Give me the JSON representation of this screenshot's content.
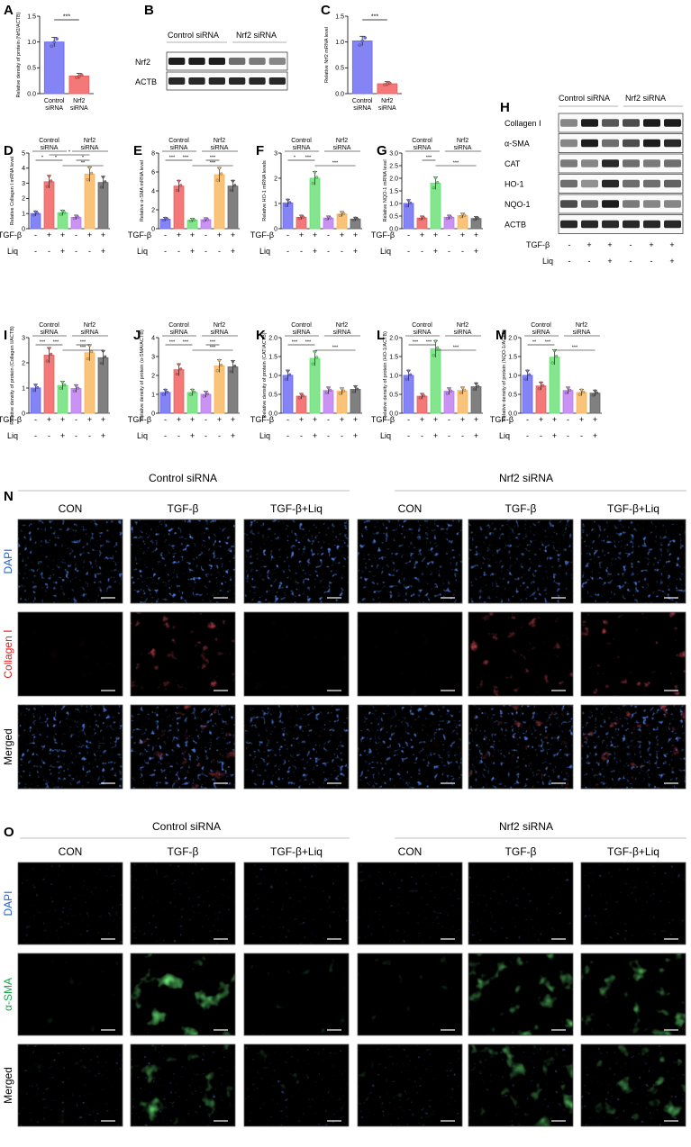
{
  "colors": {
    "control": "#6f6ff2",
    "tgf": "#f26060",
    "liq": "#6ee07a",
    "nrf2": "#c07ff2",
    "nrf2_tgf": "#f8b865",
    "nrf2_tgf_liq": "#6a6a6a"
  },
  "groups": {
    "control_sirna": "Control siRNA",
    "nrf2_sirna": "Nrf2 siRNA",
    "control_short": "Control",
    "sirna_short": "siRNA",
    "nrf2_short": "Nrf2"
  },
  "treat": {
    "tgf_label": "TGF-β",
    "liq_label": "Liq",
    "tgf_signs": [
      "-",
      "+",
      "+",
      "-",
      "+",
      "+"
    ],
    "liq_signs": [
      "-",
      "-",
      "+",
      "-",
      "-",
      "+"
    ]
  },
  "panelA": {
    "letter": "A",
    "ylabel": "Relative density of protein (Nrf2/ACTB)",
    "ylim": [
      0,
      1.5
    ],
    "yticks": [
      "0.0",
      "0.5",
      "1.0",
      "1.5"
    ],
    "categories": [
      "Control siRNA",
      "Nrf2 siRNA"
    ],
    "values": [
      1.0,
      0.34
    ],
    "sig": [
      "***"
    ]
  },
  "panelB": {
    "letter": "B",
    "rows": [
      "Nrf2",
      "ACTB"
    ]
  },
  "panelC": {
    "letter": "C",
    "ylabel": "Relative Nrf2 mRNA level",
    "ylim": [
      0,
      1.5
    ],
    "yticks": [
      "0.0",
      "0.5",
      "1.0",
      "1.5"
    ],
    "categories": [
      "Control siRNA",
      "Nrf2 siRNA"
    ],
    "values": [
      1.02,
      0.19
    ],
    "sig": [
      "***"
    ]
  },
  "panelH": {
    "letter": "H",
    "rows": [
      "Collagen Ⅰ",
      "α-SMA",
      "CAT",
      "HO-1",
      "NQO-1",
      "ACTB"
    ]
  },
  "chart_data": [
    {
      "panel": "D",
      "type": "bar",
      "ylabel": "Relative Collagen Ⅰ mRNA level",
      "ylim": [
        0,
        5
      ],
      "yticks": [
        "0",
        "1",
        "2",
        "3",
        "4",
        "5"
      ],
      "values": [
        1.0,
        3.1,
        1.05,
        0.75,
        3.6,
        3.05
      ],
      "sig": [
        "*",
        "*",
        "*",
        "**",
        "*"
      ]
    },
    {
      "panel": "E",
      "type": "bar",
      "ylabel": "Relative α-SMA mRNA level",
      "ylim": [
        0,
        8
      ],
      "yticks": [
        "0",
        "2",
        "4",
        "6",
        "8"
      ],
      "values": [
        1.0,
        4.5,
        0.9,
        0.95,
        5.7,
        4.5
      ],
      "sig": [
        "***",
        "***",
        "***",
        "***"
      ]
    },
    {
      "panel": "F",
      "type": "bar",
      "ylabel": "Relative HO-1 mRNA levels",
      "ylim": [
        0,
        3
      ],
      "yticks": [
        "0",
        "1",
        "2",
        "3"
      ],
      "values": [
        1.02,
        0.45,
        2.0,
        0.42,
        0.58,
        0.38
      ],
      "sig": [
        "*",
        "***",
        "***"
      ]
    },
    {
      "panel": "G",
      "type": "bar",
      "ylabel": "Relative NQO-1 mRNA level",
      "ylim": [
        0,
        3
      ],
      "yticks": [
        "0.0",
        "0.5",
        "1.0",
        "1.5",
        "2.0",
        "2.5",
        "3.0"
      ],
      "values": [
        1.0,
        0.42,
        1.8,
        0.45,
        0.52,
        0.4
      ],
      "sig": [
        "***",
        "***"
      ]
    },
    {
      "panel": "I",
      "type": "bar",
      "ylabel": "Relative density of protein (Collagen Ⅰ/ACTB)",
      "ylim": [
        0,
        3
      ],
      "yticks": [
        "0",
        "1",
        "2",
        "3"
      ],
      "values": [
        1.0,
        2.3,
        1.1,
        0.98,
        2.4,
        2.2
      ],
      "sig": [
        "***",
        "***",
        "***",
        "***"
      ]
    },
    {
      "panel": "J",
      "type": "bar",
      "ylabel": "Relative density of protein (α-SMA/ACTB)",
      "ylim": [
        0,
        4
      ],
      "yticks": [
        "0",
        "1",
        "2",
        "3",
        "4"
      ],
      "values": [
        1.1,
        2.3,
        1.1,
        1.0,
        2.5,
        2.45
      ],
      "sig": [
        "***",
        "***",
        "***",
        "***"
      ]
    },
    {
      "panel": "K",
      "type": "bar",
      "ylabel": "Relative density of protein (CAT/ACTB)",
      "ylim": [
        0,
        2
      ],
      "yticks": [
        "0.0",
        "0.5",
        "1.0",
        "1.5",
        "2.0"
      ],
      "values": [
        1.0,
        0.45,
        1.45,
        0.6,
        0.58,
        0.63
      ],
      "sig": [
        "***",
        "***",
        "***"
      ]
    },
    {
      "panel": "L",
      "type": "bar",
      "ylabel": "Relative density of protein (HO-1/ACTB)",
      "ylim": [
        0,
        2
      ],
      "yticks": [
        "0.0",
        "0.5",
        "1.0",
        "1.5",
        "2.0"
      ],
      "values": [
        1.0,
        0.45,
        1.7,
        0.58,
        0.6,
        0.7
      ],
      "sig": [
        "***",
        "***",
        "***"
      ]
    },
    {
      "panel": "M",
      "type": "bar",
      "ylabel": "Relative density of protein (NQO-1/ACTB)",
      "ylim": [
        0,
        2
      ],
      "yticks": [
        "0.0",
        "0.5",
        "1.0",
        "1.5",
        "2.0"
      ],
      "values": [
        1.0,
        0.72,
        1.48,
        0.6,
        0.55,
        0.53
      ],
      "sig": [
        "**",
        "***",
        "***"
      ]
    }
  ],
  "panelN": {
    "letter": "N",
    "columns": [
      "CON",
      "TGF-β",
      "TGF-β+Liq",
      "CON",
      "TGF-β",
      "TGF-β+Liq"
    ],
    "rows": [
      "DAPI",
      "Collagen Ⅰ",
      "Merged"
    ],
    "row_colors": [
      "#1f5fd6",
      "#e21d1d",
      "#000000"
    ]
  },
  "panelO": {
    "letter": "O",
    "columns": [
      "CON",
      "TGF-β",
      "TGF-β+Liq",
      "CON",
      "TGF-β",
      "TGF-β+Liq"
    ],
    "rows": [
      "DAPI",
      "α-SMA",
      "Merged"
    ],
    "row_colors": [
      "#1f5fd6",
      "#17a84a",
      "#000000"
    ]
  }
}
